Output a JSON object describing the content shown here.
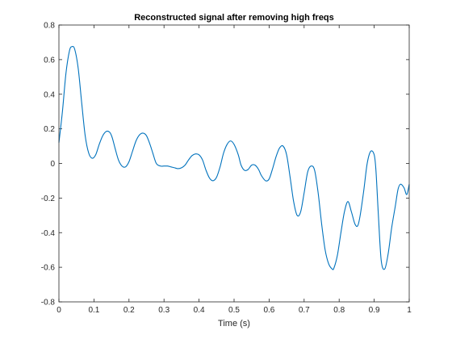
{
  "chart_data": {
    "type": "line",
    "title": "Reconstructed signal after removing high freqs",
    "xlabel": "Time (s)",
    "ylabel": "",
    "xlim": [
      0,
      1
    ],
    "ylim": [
      -0.8,
      0.8
    ],
    "grid": false,
    "legend": "none",
    "x_ticks": [
      "0",
      "0.1",
      "0.2",
      "0.3",
      "0.4",
      "0.5",
      "0.6",
      "0.7",
      "0.8",
      "0.9",
      "1"
    ],
    "y_ticks": [
      "-0.8",
      "-0.6",
      "-0.4",
      "-0.2",
      "0",
      "0.2",
      "0.4",
      "0.6",
      "0.8"
    ],
    "series": [
      {
        "color": "#0072BD",
        "x": [
          0.0,
          0.01,
          0.02,
          0.03,
          0.037,
          0.045,
          0.055,
          0.065,
          0.075,
          0.085,
          0.095,
          0.105,
          0.115,
          0.125,
          0.135,
          0.145,
          0.152,
          0.16,
          0.17,
          0.18,
          0.19,
          0.2,
          0.21,
          0.22,
          0.23,
          0.24,
          0.25,
          0.26,
          0.268,
          0.278,
          0.29,
          0.3,
          0.31,
          0.32,
          0.33,
          0.34,
          0.35,
          0.36,
          0.37,
          0.38,
          0.39,
          0.4,
          0.41,
          0.42,
          0.43,
          0.44,
          0.45,
          0.46,
          0.47,
          0.48,
          0.49,
          0.5,
          0.512,
          0.52,
          0.53,
          0.54,
          0.55,
          0.56,
          0.57,
          0.578,
          0.59,
          0.6,
          0.61,
          0.62,
          0.63,
          0.64,
          0.65,
          0.66,
          0.67,
          0.68,
          0.69,
          0.7,
          0.71,
          0.72,
          0.73,
          0.74,
          0.75,
          0.76,
          0.77,
          0.78,
          0.785,
          0.795,
          0.805,
          0.815,
          0.825,
          0.835,
          0.845,
          0.853,
          0.86,
          0.87,
          0.88,
          0.89,
          0.9,
          0.905,
          0.912,
          0.92,
          0.93,
          0.94,
          0.95,
          0.96,
          0.968,
          0.975,
          0.985,
          0.993,
          1.0
        ],
        "y": [
          0.12,
          0.3,
          0.52,
          0.65,
          0.675,
          0.66,
          0.55,
          0.35,
          0.16,
          0.06,
          0.03,
          0.05,
          0.11,
          0.16,
          0.185,
          0.18,
          0.15,
          0.09,
          0.02,
          -0.015,
          -0.02,
          0.01,
          0.07,
          0.13,
          0.165,
          0.175,
          0.16,
          0.11,
          0.06,
          0.0,
          -0.015,
          -0.015,
          -0.015,
          -0.02,
          -0.025,
          -0.03,
          -0.025,
          -0.01,
          0.02,
          0.045,
          0.055,
          0.05,
          0.02,
          -0.04,
          -0.085,
          -0.1,
          -0.08,
          -0.02,
          0.06,
          0.11,
          0.13,
          0.11,
          0.05,
          -0.01,
          -0.04,
          -0.035,
          -0.01,
          -0.01,
          -0.035,
          -0.07,
          -0.1,
          -0.09,
          -0.03,
          0.04,
          0.09,
          0.1,
          0.05,
          -0.08,
          -0.22,
          -0.3,
          -0.28,
          -0.17,
          -0.05,
          -0.015,
          -0.04,
          -0.17,
          -0.35,
          -0.5,
          -0.58,
          -0.61,
          -0.605,
          -0.53,
          -0.4,
          -0.28,
          -0.22,
          -0.28,
          -0.35,
          -0.36,
          -0.3,
          -0.16,
          0.0,
          0.07,
          0.05,
          -0.04,
          -0.3,
          -0.56,
          -0.61,
          -0.52,
          -0.37,
          -0.25,
          -0.15,
          -0.12,
          -0.14,
          -0.18,
          -0.12
        ]
      }
    ]
  }
}
